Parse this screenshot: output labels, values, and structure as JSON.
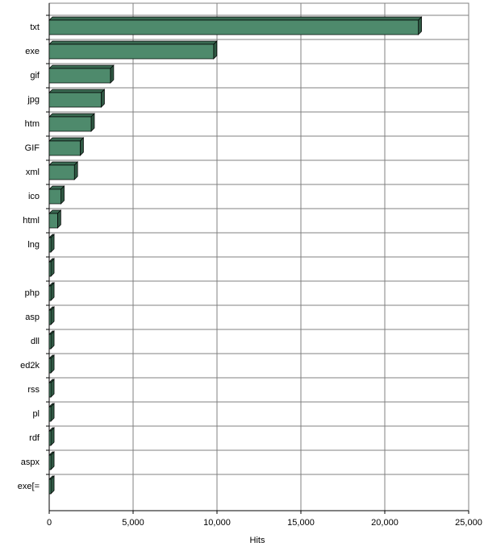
{
  "chart_data": {
    "type": "bar",
    "orientation": "horizontal",
    "x_label": "Hits",
    "categories": [
      "txt",
      "exe",
      "gif",
      "jpg",
      "htm",
      "GIF",
      "xml",
      "ico",
      "html",
      "lng",
      null,
      "php",
      "asp",
      "dll",
      "ed2k",
      "rss",
      "pl",
      "rdf",
      "aspx",
      "exe[="
    ],
    "values": [
      22000,
      9800,
      3650,
      3100,
      2500,
      1850,
      1500,
      700,
      500,
      100,
      100,
      100,
      100,
      100,
      100,
      100,
      100,
      100,
      100,
      100
    ],
    "color": "#4e8a6c",
    "xlim": [
      0,
      25000
    ],
    "xticks": [
      0,
      {
        "value": 5000,
        "label": "5,000"
      },
      {
        "value": 10000,
        "label": "10,000"
      },
      {
        "value": 15000,
        "label": "15,000"
      },
      {
        "value": 20000,
        "label": "20,000"
      },
      {
        "value": 25000,
        "label": "25,000"
      }
    ],
    "grid": true
  }
}
